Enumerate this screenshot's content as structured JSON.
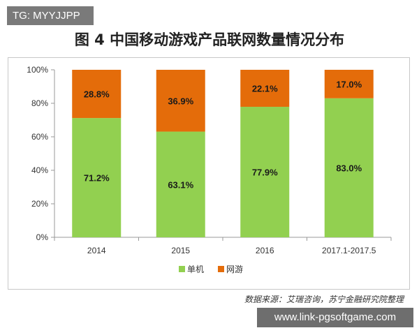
{
  "tag": "TG: MYYJJPP",
  "title": "图 4  中国移动游戏产品联网数量情况分布",
  "source": "数据来源：艾瑞咨询，苏宁金融研究院整理",
  "watermark": "www.link-pgsoftgame.com",
  "chart_data": {
    "type": "bar",
    "stacked": true,
    "categories": [
      "2014",
      "2015",
      "2016",
      "2017.1-2017.5"
    ],
    "series": [
      {
        "name": "单机",
        "values": [
          71.2,
          63.1,
          77.9,
          83.0
        ],
        "labels": [
          "71.2%",
          "63.1%",
          "77.9%",
          "83.0%"
        ],
        "color": "#92d050"
      },
      {
        "name": "网游",
        "values": [
          28.8,
          36.9,
          22.1,
          17.0
        ],
        "labels": [
          "28.8%",
          "36.9%",
          "22.1%",
          "17.0%"
        ],
        "color": "#e46c0a"
      }
    ],
    "ylim": [
      0,
      100
    ],
    "yticks": [
      "0%",
      "20%",
      "40%",
      "60%",
      "80%",
      "100%"
    ],
    "grid": false,
    "legend": "bottom"
  }
}
